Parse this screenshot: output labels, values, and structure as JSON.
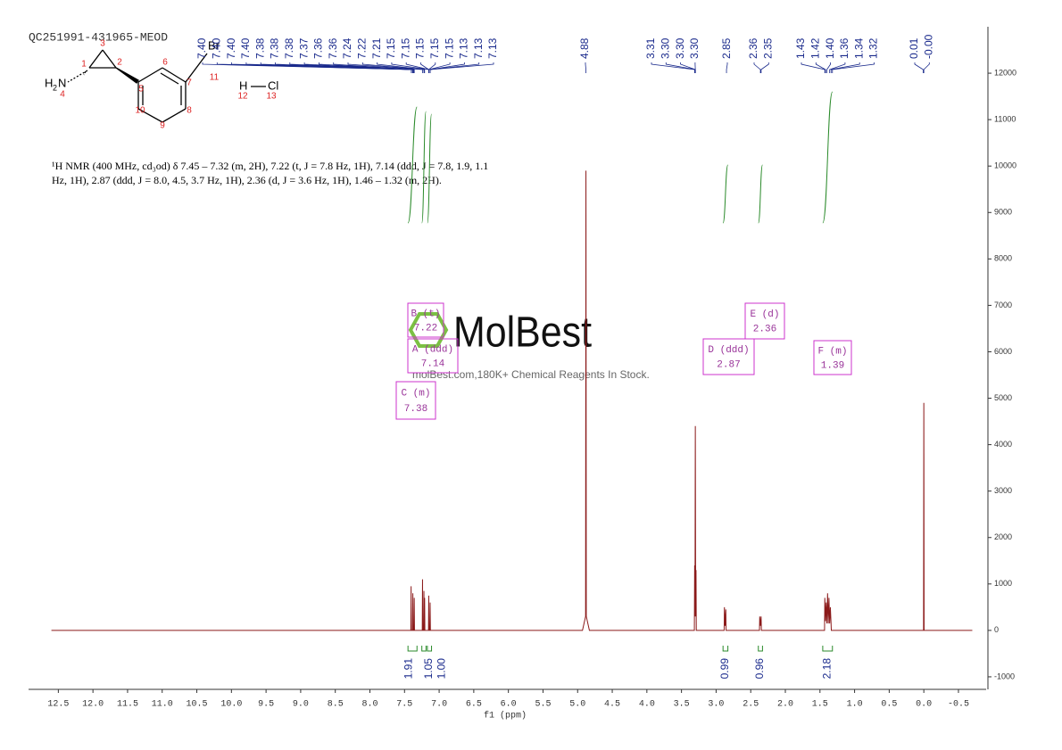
{
  "chart_data": {
    "type": "line",
    "title": "QC251991-431965-MEOD",
    "description": [
      "¹H NMR (400 MHz, cd₃od) δ 7.45 – 7.32 (m, 2H), 7.22 (t, J = 7.8 Hz, 1H), 7.14 (ddd, J = 7.8, 1.9, 1.1",
      "Hz, 1H), 2.87 (ddd, J = 8.0, 4.5, 3.7 Hz, 1H), 2.36 (d, J = 3.6 Hz, 1H), 1.46 – 1.32 (m, 2H)."
    ],
    "xlabel": "f1 (ppm)",
    "color": "#8b1a1a",
    "x": [
      12.6,
      7.409,
      7.405,
      7.401,
      7.384,
      7.38,
      7.376,
      7.364,
      7.36,
      7.356,
      7.244,
      7.24,
      7.236,
      7.224,
      7.22,
      7.216,
      7.214,
      7.21,
      7.206,
      7.154,
      7.15,
      7.146,
      7.134,
      7.13,
      7.126,
      4.93,
      4.885,
      4.88,
      4.875,
      4.83,
      3.314,
      3.31,
      3.305,
      3.3,
      3.295,
      3.29,
      3.286,
      2.884,
      2.88,
      2.87,
      2.86,
      2.856,
      2.374,
      2.37,
      2.36,
      2.35,
      2.346,
      1.434,
      1.43,
      1.42,
      1.41,
      1.4,
      1.39,
      1.38,
      1.37,
      1.36,
      1.35,
      1.34,
      1.336,
      0.004,
      0.0,
      -0.004,
      -0.7
    ],
    "values": [
      0,
      0,
      950,
      0,
      0,
      800,
      0,
      0,
      700,
      0,
      0,
      1100,
      0,
      0,
      850,
      0,
      0,
      700,
      0,
      0,
      750,
      0,
      0,
      600,
      0,
      0,
      300,
      9900,
      300,
      0,
      0,
      1400,
      300,
      4400,
      300,
      1300,
      0,
      0,
      500,
      100,
      450,
      0,
      0,
      300,
      100,
      300,
      0,
      0,
      700,
      200,
      600,
      150,
      800,
      150,
      700,
      150,
      500,
      150,
      0,
      0,
      4900,
      0,
      0
    ],
    "xlim": [
      12.93,
      -0.9
    ],
    "ylim": [
      -1270,
      13000
    ],
    "xticks": [
      12.5,
      {
        "value": 12,
        "label": "12.0"
      },
      11.5,
      {
        "value": 11,
        "label": "11.0"
      },
      10.5,
      {
        "value": 10,
        "label": "10.0"
      },
      9.5,
      {
        "value": 9,
        "label": "9.0"
      },
      8.5,
      {
        "value": 8,
        "label": "8.0"
      },
      7.5,
      {
        "value": 7,
        "label": "7.0"
      },
      6.5,
      {
        "value": 6,
        "label": "6.0"
      },
      5.5,
      {
        "value": 5,
        "label": "5.0"
      },
      4.5,
      {
        "value": 4,
        "label": "4.0"
      },
      3.5,
      {
        "value": 3,
        "label": "3.0"
      },
      2.5,
      {
        "value": 2,
        "label": "2.0"
      },
      1.5,
      {
        "value": 1,
        "label": "1.0"
      },
      0.5,
      {
        "value": 0,
        "label": "0.0"
      },
      -0.5
    ],
    "yticks": [
      -1000,
      0,
      1000,
      2000,
      3000,
      4000,
      5000,
      6000,
      7000,
      8000,
      9000,
      10000,
      11000,
      12000
    ],
    "peak_labels": [
      [
        "7.40",
        "7.40",
        "7.40",
        "7.40",
        "7.38",
        "7.38",
        "7.38",
        "7.37",
        "7.36",
        "7.36",
        "7.24",
        "7.22",
        "7.21",
        "7.15",
        "7.15",
        "7.15",
        "7.15",
        "7.15",
        "7.13",
        "7.13",
        "7.13"
      ],
      [
        "4.88"
      ],
      [
        "3.31",
        "3.30",
        "3.30",
        "3.30"
      ],
      [
        "2.85"
      ],
      [
        "2.36",
        "2.35"
      ],
      [
        "1.43",
        "1.42",
        "1.40",
        "1.36",
        "1.34",
        "1.32"
      ],
      [
        "0.01",
        "-0.00"
      ]
    ],
    "integrals": [
      {
        "from": 7.45,
        "to": 7.32,
        "label": "1.91"
      },
      {
        "from": 7.25,
        "to": 7.19,
        "label": "1.05"
      },
      {
        "from": 7.17,
        "to": 7.11,
        "label": "1.00"
      },
      {
        "from": 2.9,
        "to": 2.83,
        "label": "0.99"
      },
      {
        "from": 2.39,
        "to": 2.33,
        "label": "0.96"
      },
      {
        "from": 1.46,
        "to": 1.32,
        "label": "2.18"
      }
    ],
    "multiplets": [
      {
        "name": "B (t)",
        "shift": "7.22"
      },
      {
        "name": "A (ddd)",
        "shift": "7.14"
      },
      {
        "name": "C (m)",
        "shift": "7.38"
      },
      {
        "name": "E (d)",
        "shift": "2.36"
      },
      {
        "name": "D (ddd)",
        "shift": "2.87"
      },
      {
        "name": "F (m)",
        "shift": "1.39"
      }
    ]
  },
  "structure": {
    "atom_numbers": [
      "3",
      "1",
      "2",
      "6",
      "5",
      "7",
      "10",
      "8",
      "9",
      "4",
      "11",
      "12",
      "13"
    ],
    "amine_h": "H",
    "amine_sub": "2",
    "amine_n": "N",
    "br": "Br",
    "h": "H",
    "cl": "Cl"
  },
  "watermark": {
    "brand": "MolBest",
    "slogan": "molBest.com,180K+ Chemical Reagents In Stock."
  }
}
